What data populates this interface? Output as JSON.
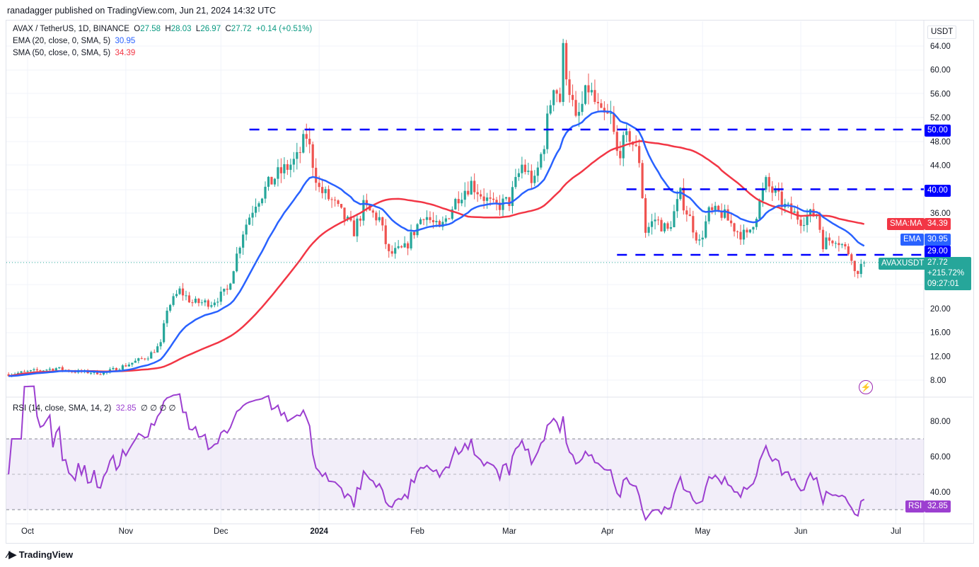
{
  "publisher": "ranadagger published on TradingView.com, Jun 21, 2024 14:32 UTC",
  "legend": {
    "symbol": "AVAX / TetherUS, 1D, BINANCE",
    "o_label": "O",
    "o": "27.58",
    "h_label": "H",
    "h": "28.03",
    "l_label": "L",
    "l": "26.97",
    "c_label": "C",
    "c": "27.72",
    "change": "+0.14 (+0.51%)",
    "ema": "EMA (20, close, 0, SMA, 5)",
    "ema_value": "30.95",
    "sma": "SMA (50, close, 0, SMA, 5)",
    "sma_value": "34.39",
    "rsi": "RSI (14, close, SMA, 14, 2)",
    "rsi_value": "32.85",
    "rsi_na": "∅ ∅ ∅ ∅"
  },
  "axis": {
    "currency": "USDT",
    "price_ticks": [
      "64.00",
      "60.00",
      "56.00",
      "52.00",
      "48.00",
      "44.00",
      "40.00",
      "36.00",
      "20.00",
      "16.00",
      "12.00",
      "8.00"
    ],
    "rsi_ticks": [
      "80.00",
      "60.00",
      "40.00"
    ],
    "time_ticks": [
      "Oct",
      "Nov",
      "Dec",
      "2024",
      "Feb",
      "Mar",
      "Apr",
      "May",
      "Jun",
      "Jul"
    ]
  },
  "labels": {
    "level_50": "50.00",
    "level_40": "40.00",
    "level_29": "29.00",
    "sma_tag": "SMA:MA",
    "sma_val": "34.39",
    "ema_tag": "EMA",
    "ema_val": "30.95",
    "symbol_tag": "AVAXUSDT",
    "last_price": "27.72",
    "last_change": "+215.72%",
    "countdown": "09:27:01",
    "rsi_tag": "RSI",
    "rsi_val": "32.85"
  },
  "colors": {
    "up": "#26a69a",
    "down": "#ef5350",
    "ema": "#2962ff",
    "sma": "#f23645",
    "levels": "#0000ff",
    "rsi": "#9c3fd0",
    "rsi_band": "#7e57c2"
  },
  "logo": "TradingView",
  "chart_data": {
    "type": "candlestick",
    "ylim": [
      6,
      66
    ],
    "rsi_ylim": [
      20,
      100
    ],
    "rsi_band": [
      30,
      70
    ],
    "close_path": [
      [
        "2023-09-25",
        9.0
      ],
      [
        "2023-10-10",
        10
      ],
      [
        "2023-10-15",
        9.5
      ],
      [
        "2023-10-25",
        9.2
      ],
      [
        "2023-11-01",
        10.5
      ],
      [
        "2023-11-08",
        12
      ],
      [
        "2023-11-12",
        14
      ],
      [
        "2023-11-14",
        20
      ],
      [
        "2023-11-18",
        23
      ],
      [
        "2023-11-22",
        21
      ],
      [
        "2023-11-28",
        21
      ],
      [
        "2023-12-03",
        23
      ],
      [
        "2023-12-08",
        33
      ],
      [
        "2023-12-12",
        38
      ],
      [
        "2023-12-18",
        42
      ],
      [
        "2023-12-25",
        45
      ],
      [
        "2023-12-28",
        49
      ],
      [
        "2024-01-01",
        40
      ],
      [
        "2024-01-05",
        38
      ],
      [
        "2024-01-12",
        33
      ],
      [
        "2024-01-15",
        37
      ],
      [
        "2024-01-20",
        35
      ],
      [
        "2024-01-23",
        29
      ],
      [
        "2024-01-28",
        30
      ],
      [
        "2024-02-03",
        36
      ],
      [
        "2024-02-08",
        33
      ],
      [
        "2024-02-14",
        39
      ],
      [
        "2024-02-18",
        41
      ],
      [
        "2024-02-25",
        37
      ],
      [
        "2024-03-01",
        38
      ],
      [
        "2024-03-05",
        44
      ],
      [
        "2024-03-09",
        41
      ],
      [
        "2024-03-12",
        48
      ],
      [
        "2024-03-15",
        58
      ],
      [
        "2024-03-17",
        55
      ],
      [
        "2024-03-18",
        63
      ],
      [
        "2024-03-22",
        51
      ],
      [
        "2024-03-26",
        57
      ],
      [
        "2024-03-30",
        52
      ],
      [
        "2024-04-02",
        52
      ],
      [
        "2024-04-04",
        46
      ],
      [
        "2024-04-08",
        49
      ],
      [
        "2024-04-11",
        45
      ],
      [
        "2024-04-13",
        33
      ],
      [
        "2024-04-16",
        35
      ],
      [
        "2024-04-20",
        33
      ],
      [
        "2024-04-24",
        39
      ],
      [
        "2024-04-30",
        31
      ],
      [
        "2024-05-03",
        36
      ],
      [
        "2024-05-07",
        36
      ],
      [
        "2024-05-12",
        33
      ],
      [
        "2024-05-15",
        32
      ],
      [
        "2024-05-18",
        36
      ],
      [
        "2024-05-21",
        41
      ],
      [
        "2024-05-27",
        37
      ],
      [
        "2024-06-01",
        35
      ],
      [
        "2024-06-06",
        36
      ],
      [
        "2024-06-08",
        31
      ],
      [
        "2024-06-12",
        32
      ],
      [
        "2024-06-15",
        30
      ],
      [
        "2024-06-17",
        29
      ],
      [
        "2024-06-18",
        26
      ],
      [
        "2024-06-21",
        27.72
      ]
    ],
    "horizontal_levels": [
      {
        "price": 50,
        "from": "2023-12-10"
      },
      {
        "price": 40,
        "from": "2024-04-07"
      },
      {
        "price": 29,
        "from": "2024-04-04"
      }
    ],
    "series": [
      {
        "name": "EMA (20, close, 0, SMA, 5)"
      },
      {
        "name": "SMA (50, close, 0, SMA, 5)"
      },
      {
        "name": "RSI (14, close, SMA, 14, 2)"
      }
    ]
  }
}
